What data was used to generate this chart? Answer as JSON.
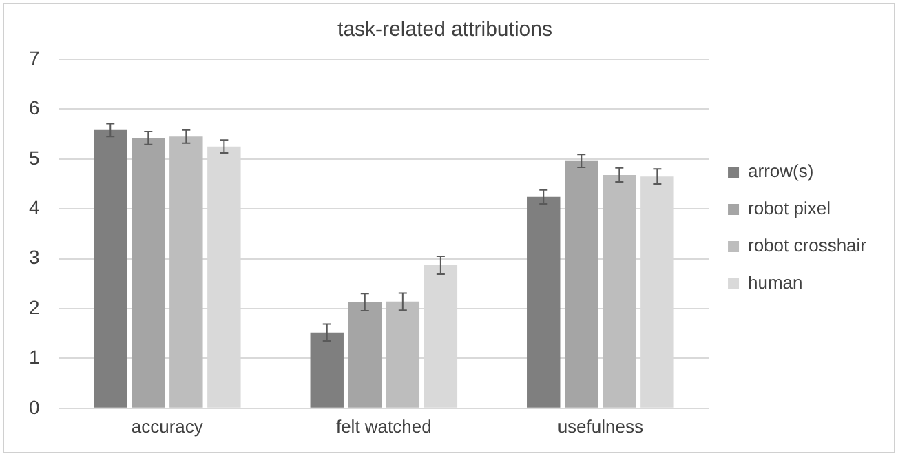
{
  "chart_data": {
    "type": "bar",
    "title": "task-related attributions",
    "categories": [
      "accuracy",
      "felt watched",
      "usefulness"
    ],
    "series": [
      {
        "name": "arrow(s)",
        "color": "#7f7f7f",
        "values": [
          5.58,
          1.52,
          4.24
        ],
        "errors": [
          0.13,
          0.17,
          0.14
        ]
      },
      {
        "name": "robot pixel",
        "color": "#a5a5a5",
        "values": [
          5.42,
          2.13,
          4.96
        ],
        "errors": [
          0.13,
          0.17,
          0.13
        ]
      },
      {
        "name": "robot crosshair",
        "color": "#bdbdbd",
        "values": [
          5.45,
          2.14,
          4.68
        ],
        "errors": [
          0.13,
          0.17,
          0.14
        ]
      },
      {
        "name": "human",
        "color": "#d9d9d9",
        "values": [
          5.25,
          2.87,
          4.65
        ],
        "errors": [
          0.13,
          0.18,
          0.15
        ]
      }
    ],
    "ylim": [
      0,
      7
    ],
    "yticks": [
      0,
      1,
      2,
      3,
      4,
      5,
      6,
      7
    ],
    "grid": "y",
    "legend": "right"
  }
}
